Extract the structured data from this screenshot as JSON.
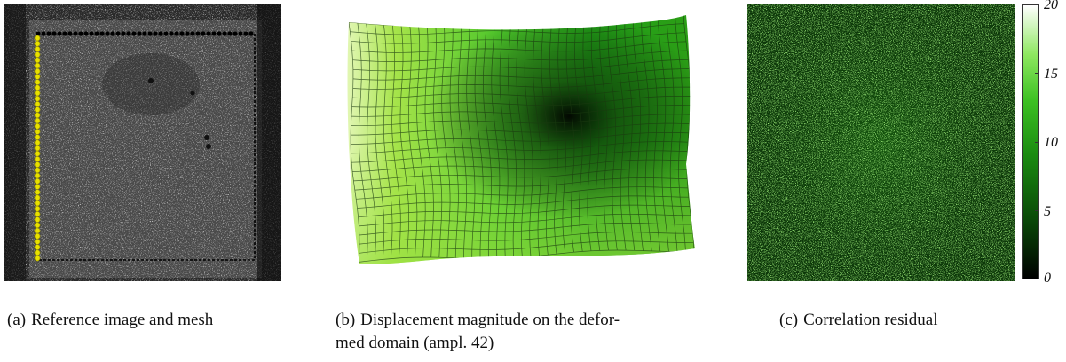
{
  "figure": {
    "panels": [
      {
        "id": "a",
        "tag": "(a)",
        "caption": "Reference image and mesh"
      },
      {
        "id": "b",
        "tag": "(b)",
        "caption_line1": "Displacement magnitude on the defor-",
        "caption_line2": "med domain (ampl. 42)"
      },
      {
        "id": "c",
        "tag": "(c)",
        "caption": "Correlation residual"
      }
    ],
    "colorbar": {
      "ticks": [
        "20",
        "15",
        "10",
        "5",
        "0"
      ]
    }
  },
  "colors": {
    "mesh_yellow": "#e8e000",
    "mesh_black": "#000000",
    "field_low": "#000000",
    "field_high": "#ffffff",
    "field_mid": "#2ea81a"
  }
}
